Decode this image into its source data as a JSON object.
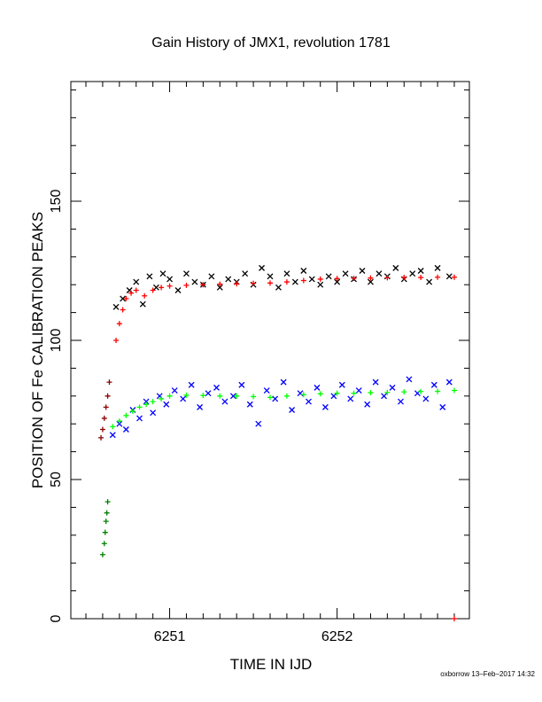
{
  "chart_data": {
    "type": "scatter",
    "title": "Gain History of JMX1, revolution 1781",
    "xlabel": "TIME IN IJD",
    "ylabel": "POSITION OF Fe CALIBRATION PEAKS",
    "credit": "oxborrow 13–Feb–2017 14:32",
    "xlim": [
      6250.41,
      6252.79
    ],
    "ylim": [
      0,
      193
    ],
    "xticks": [
      6251,
      6252
    ],
    "yticks": [
      0,
      50,
      100,
      150
    ],
    "grid": false,
    "legend": "none",
    "series": [
      {
        "marker": "cross-x",
        "color": "#000000",
        "x": [
          6250.68,
          6250.72,
          6250.76,
          6250.8,
          6250.84,
          6250.88,
          6250.92,
          6250.96,
          6251.0,
          6251.05,
          6251.1,
          6251.15,
          6251.2,
          6251.25,
          6251.3,
          6251.35,
          6251.4,
          6251.45,
          6251.5,
          6251.55,
          6251.6,
          6251.65,
          6251.7,
          6251.75,
          6251.8,
          6251.85,
          6251.9,
          6251.95,
          6252.0,
          6252.05,
          6252.1,
          6252.15,
          6252.2,
          6252.25,
          6252.3,
          6252.35,
          6252.4,
          6252.45,
          6252.5,
          6252.55,
          6252.6,
          6252.67
        ],
        "y": [
          112,
          115,
          118,
          121,
          113,
          123,
          119,
          124,
          122,
          118,
          124,
          121,
          120,
          123,
          119,
          122,
          121,
          124,
          120,
          126,
          123,
          119,
          124,
          121,
          125,
          122,
          120,
          123,
          121,
          124,
          122,
          125,
          121,
          124,
          123,
          126,
          122,
          124,
          125,
          121,
          126,
          123
        ]
      },
      {
        "marker": "plus",
        "color": "#ff0000",
        "x": [
          6250.68,
          6250.7,
          6250.72,
          6250.74,
          6250.77,
          6250.8,
          6250.85,
          6250.9,
          6250.95,
          6251.0,
          6251.1,
          6251.2,
          6251.3,
          6251.4,
          6251.5,
          6251.6,
          6251.7,
          6251.8,
          6251.9,
          6252.0,
          6252.1,
          6252.2,
          6252.3,
          6252.4,
          6252.5,
          6252.6,
          6252.7
        ],
        "y": [
          100,
          106,
          111,
          115,
          117,
          118,
          116,
          118,
          119,
          119.5,
          119.8,
          120,
          120.2,
          120.3,
          120.5,
          120.6,
          121,
          121.5,
          122,
          122.2,
          122.3,
          122.4,
          122.5,
          122.6,
          122.6,
          122.7,
          122.7
        ]
      },
      {
        "marker": "plus",
        "color": "#8b0000",
        "x": [
          6250.59,
          6250.6,
          6250.61,
          6250.62,
          6250.63,
          6250.64
        ],
        "y": [
          65,
          68,
          72,
          76,
          80,
          85
        ]
      },
      {
        "marker": "cross-x",
        "color": "#0000ff",
        "x": [
          6250.66,
          6250.7,
          6250.74,
          6250.78,
          6250.82,
          6250.86,
          6250.9,
          6250.94,
          6250.98,
          6251.03,
          6251.08,
          6251.13,
          6251.18,
          6251.23,
          6251.28,
          6251.33,
          6251.38,
          6251.43,
          6251.48,
          6251.53,
          6251.58,
          6251.63,
          6251.68,
          6251.73,
          6251.78,
          6251.83,
          6251.88,
          6251.93,
          6251.98,
          6252.03,
          6252.08,
          6252.13,
          6252.18,
          6252.23,
          6252.28,
          6252.33,
          6252.38,
          6252.43,
          6252.48,
          6252.53,
          6252.58,
          6252.63,
          6252.67
        ],
        "y": [
          66,
          70,
          68,
          75,
          72,
          78,
          74,
          80,
          77,
          82,
          79,
          84,
          76,
          81,
          83,
          78,
          80,
          84,
          77,
          70,
          82,
          79,
          85,
          75,
          81,
          78,
          83,
          76,
          80,
          84,
          79,
          82,
          77,
          85,
          80,
          83,
          78,
          86,
          81,
          79,
          84,
          76,
          85
        ]
      },
      {
        "marker": "plus",
        "color": "#00ff00",
        "x": [
          6250.66,
          6250.7,
          6250.74,
          6250.78,
          6250.82,
          6250.86,
          6250.9,
          6250.95,
          6251.0,
          6251.1,
          6251.2,
          6251.3,
          6251.4,
          6251.5,
          6251.6,
          6251.7,
          6251.8,
          6251.9,
          6252.0,
          6252.1,
          6252.2,
          6252.3,
          6252.4,
          6252.5,
          6252.6,
          6252.7
        ],
        "y": [
          69,
          71,
          73,
          74.5,
          76,
          77,
          78,
          79,
          80,
          80.3,
          80.2,
          80,
          80,
          79.8,
          79.5,
          80,
          80.5,
          80.8,
          81,
          81,
          81.2,
          81.3,
          81.5,
          81.6,
          81.7,
          82
        ]
      },
      {
        "marker": "plus",
        "color": "#008000",
        "x": [
          6250.6,
          6250.61,
          6250.615,
          6250.62,
          6250.625,
          6250.63
        ],
        "y": [
          23,
          27,
          31,
          35,
          38,
          42
        ]
      },
      {
        "marker": "plus",
        "color": "#ff0000",
        "x": [
          6252.7
        ],
        "y": [
          0
        ]
      }
    ]
  }
}
